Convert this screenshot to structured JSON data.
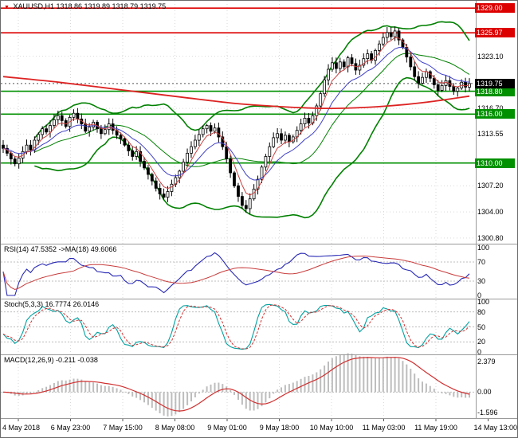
{
  "header": {
    "marker_glyph": "▼",
    "symbol": "XAUUSD,H1",
    "ohlc": "1318.86 1319.89 1318.79 1319.75"
  },
  "colors": {
    "grid": "#d9d9d9",
    "separator": "#9a9a9a",
    "candle_stroke": "#000000",
    "candle_up_fill": "#ffffff",
    "candle_down_fill": "#000000",
    "bands": "#008000",
    "level_green": "#009000",
    "level_red": "#dd0000",
    "ma_red": "#dd2222",
    "ma_fast_red": "#c84040",
    "ma_fast_blue": "#4040c8",
    "rsi_line": "#2828b4",
    "rsi_ma": "#c83c3c",
    "stoch_k": "#00a0a0",
    "stoch_d": "#d03030",
    "macd_hist": "#bdbdbd",
    "macd_signal": "#d03030",
    "label_black_bg": "#000000",
    "current_price_line": "#555555"
  },
  "chart_data": {
    "type": "candlestick",
    "title": "XAUUSD,H1",
    "ohlc_readout": {
      "open": "1318.86",
      "high": "1319.89",
      "low": "1318.79",
      "close": "1319.75"
    },
    "x_labels": [
      "4 May 2018",
      "6 May 23:00",
      "7 May 15:00",
      "8 May 08:00",
      "9 May 01:00",
      "9 May 18:00",
      "10 May 10:00",
      "11 May 03:00",
      "11 May 19:00",
      "14 May 13:00"
    ],
    "price_axis": {
      "max": 1329.9,
      "min": 1300.1,
      "plain": [
        [
          "1323.10",
          1323.1
        ],
        [
          "1316.70",
          1316.7
        ],
        [
          "1313.55",
          1313.55
        ],
        [
          "1307.20",
          1307.2
        ],
        [
          "1304.00",
          1304.0
        ],
        [
          "1300.80",
          1300.8
        ]
      ],
      "red_levels": [
        [
          "1329.00",
          1329.0
        ],
        [
          "1325.97",
          1325.97
        ]
      ],
      "green_levels": [
        [
          "1318.80",
          1318.8
        ],
        [
          "1316.00",
          1316.0
        ],
        [
          "1310.00",
          1310.0
        ]
      ],
      "current": [
        "1319.75",
        1319.75
      ]
    },
    "closes": [
      1311.8,
      1311.2,
      1310.5,
      1309.9,
      1310.6,
      1311.4,
      1312.2,
      1311.6,
      1312.8,
      1313.5,
      1314.2,
      1313.8,
      1314.6,
      1315.3,
      1315.8,
      1315.2,
      1314.5,
      1315.6,
      1316.1,
      1315.4,
      1314.8,
      1313.9,
      1314.4,
      1315.0,
      1314.2,
      1313.6,
      1314.1,
      1314.8,
      1314.0,
      1313.4,
      1313.0,
      1312.2,
      1311.5,
      1310.8,
      1311.4,
      1310.2,
      1309.4,
      1308.6,
      1307.8,
      1306.9,
      1306.2,
      1305.8,
      1306.5,
      1307.4,
      1308.2,
      1309.0,
      1310.1,
      1311.2,
      1312.0,
      1312.8,
      1313.5,
      1314.2,
      1314.6,
      1313.9,
      1314.3,
      1313.2,
      1312.0,
      1310.5,
      1308.8,
      1307.2,
      1305.9,
      1304.8,
      1304.4,
      1305.6,
      1306.8,
      1308.0,
      1309.5,
      1310.8,
      1312.0,
      1313.1,
      1313.6,
      1312.8,
      1313.4,
      1312.6,
      1313.2,
      1314.0,
      1314.8,
      1315.5,
      1314.9,
      1315.8,
      1317.0,
      1318.5,
      1320.2,
      1321.5,
      1322.3,
      1321.6,
      1322.4,
      1321.8,
      1322.9,
      1322.2,
      1321.4,
      1322.0,
      1322.8,
      1323.4,
      1322.6,
      1323.8,
      1324.6,
      1325.4,
      1326.0,
      1325.5,
      1326.2,
      1325.1,
      1324.2,
      1323.0,
      1321.8,
      1320.6,
      1319.8,
      1320.5,
      1321.2,
      1320.4,
      1319.6,
      1318.9,
      1319.5,
      1320.1,
      1319.4,
      1318.8,
      1319.2,
      1319.9,
      1319.3,
      1319.75
    ],
    "bollinger": {
      "period": 20,
      "deviation": 2
    },
    "ma_red_points": [
      [
        0,
        1320.6
      ],
      [
        0.12,
        1319.9
      ],
      [
        0.25,
        1319.0
      ],
      [
        0.38,
        1318.1
      ],
      [
        0.5,
        1317.3
      ],
      [
        0.6,
        1316.9
      ],
      [
        0.7,
        1316.7
      ],
      [
        0.8,
        1316.9
      ],
      [
        0.9,
        1317.4
      ],
      [
        1,
        1318.2
      ]
    ],
    "fast_ma": {
      "blue_period": 12,
      "red_period": 5
    },
    "panels": {
      "rsi": {
        "label": "RSI(14) 47.5352 ->MA(18) 49.6066",
        "period": 14,
        "ma_period": 18,
        "axis_labels": [
          [
            "100",
            100
          ],
          [
            "70",
            70
          ],
          [
            "30",
            30
          ],
          [
            "0",
            0
          ]
        ],
        "level_lines": [
          70,
          30
        ],
        "current": 47.5352,
        "current_ma": 49.6066
      },
      "stoch": {
        "label": "Stoch(5,3,3) 16.7774 26.0146",
        "k_period": 5,
        "slowing": 3,
        "d_period": 3,
        "axis_labels": [
          [
            "100",
            100
          ],
          [
            "80",
            80
          ],
          [
            "50",
            50
          ],
          [
            "20",
            20
          ],
          [
            "0",
            0
          ]
        ],
        "level_lines": [
          80,
          50,
          20
        ],
        "current_k": 16.7774,
        "current_d": 26.0146
      },
      "macd": {
        "label": "MACD(12,26,9) -0.211 -0.038",
        "fast": 12,
        "slow": 26,
        "signal": 9,
        "axis_labels": [
          [
            "2.379",
            2.379
          ],
          [
            "0.00",
            0
          ],
          [
            "-1.596",
            -1.596
          ]
        ],
        "range": [
          -1.85,
          2.65
        ],
        "current_main": -0.211,
        "current_signal": -0.038
      }
    }
  }
}
